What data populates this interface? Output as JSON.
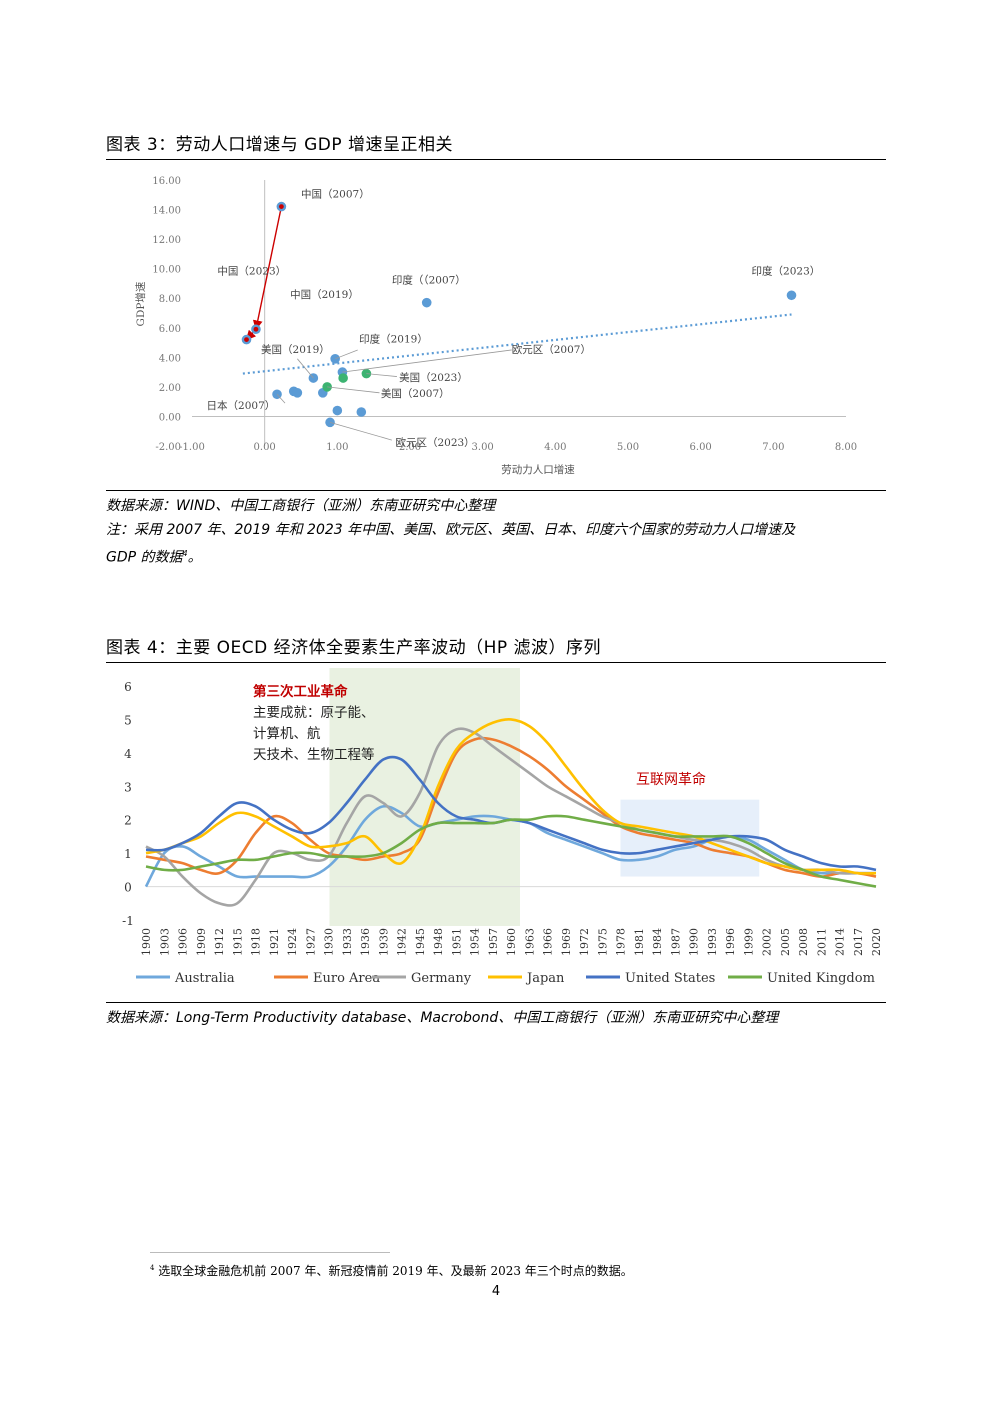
{
  "fig3": {
    "title": "图表 3：劳动人口增速与 GDP 增速呈正相关",
    "source": "数据来源：WIND、中国工商银行（亚洲）东南亚研究中心整理",
    "note_line1": "注：采用 2007 年、2019 年和 2023 年中国、美国、欧元区、英国、日本、印度六个国家的劳动力人口增速及",
    "note_line2": "GDP 的数据",
    "note_sup": "4",
    "note_end": "。"
  },
  "fig4": {
    "title": "图表 4：主要 OECD 经济体全要素生产率波动（HP 滤波）序列",
    "source": "数据来源：Long-Term Productivity database、Macrobond、中国工商银行（亚洲）东南亚研究中心整理"
  },
  "footnote": {
    "mark": "4",
    "text": "选取全球金融危机前 2007 年、新冠疫情前 2019 年、及最新 2023 年三个时点的数据。"
  },
  "page_number": "4",
  "colors": {
    "scatter_blue": "#5b9bd5",
    "scatter_green": "#3cb371",
    "arrow_red": "#cc0000",
    "trend": "#5b9bd5",
    "band_green": "#e9f1e1",
    "band_blue": "#e6effa"
  },
  "chart_data": [
    {
      "type": "scatter",
      "xlabel": "劳动力人口增速",
      "ylabel": "GDP增速",
      "xlim": [
        -1.0,
        8.0
      ],
      "ylim": [
        -2.0,
        16.0
      ],
      "xticks": [
        "-1.00",
        "0.00",
        "1.00",
        "2.00",
        "3.00",
        "4.00",
        "5.00",
        "6.00",
        "7.00",
        "8.00"
      ],
      "yticks": [
        "-2.00",
        "0.00",
        "2.00",
        "4.00",
        "6.00",
        "8.00",
        "10.00",
        "12.00",
        "14.00",
        "16.00"
      ],
      "trendline": {
        "from": [
          -0.3,
          2.9
        ],
        "to": [
          7.25,
          6.9
        ]
      },
      "points": [
        {
          "x": 0.23,
          "y": 14.2,
          "color": "blue",
          "china": true
        },
        {
          "x": -0.12,
          "y": 5.9,
          "color": "blue",
          "china": true
        },
        {
          "x": -0.25,
          "y": 5.2,
          "color": "blue",
          "china": true
        },
        {
          "x": 2.23,
          "y": 7.7,
          "color": "blue"
        },
        {
          "x": 7.25,
          "y": 8.2,
          "color": "blue"
        },
        {
          "x": 0.97,
          "y": 3.9,
          "color": "blue"
        },
        {
          "x": 0.67,
          "y": 2.6,
          "color": "blue"
        },
        {
          "x": 1.07,
          "y": 3.0,
          "color": "blue"
        },
        {
          "x": 0.8,
          "y": 1.6,
          "color": "blue"
        },
        {
          "x": 0.17,
          "y": 1.5,
          "color": "blue"
        },
        {
          "x": 0.4,
          "y": 1.7,
          "color": "blue"
        },
        {
          "x": 0.45,
          "y": 1.6,
          "color": "blue"
        },
        {
          "x": 0.9,
          "y": -0.4,
          "color": "blue"
        },
        {
          "x": 1.0,
          "y": 0.4,
          "color": "blue"
        },
        {
          "x": 1.33,
          "y": 0.3,
          "color": "blue"
        },
        {
          "x": 1.4,
          "y": 2.9,
          "color": "green"
        },
        {
          "x": 1.08,
          "y": 2.6,
          "color": "green"
        },
        {
          "x": 0.86,
          "y": 2.0,
          "color": "green"
        }
      ],
      "arrows": [
        {
          "from": [
            0.23,
            14.2
          ],
          "to": [
            -0.12,
            5.9
          ]
        },
        {
          "from": [
            -0.12,
            5.9
          ],
          "to": [
            -0.25,
            5.2
          ]
        }
      ],
      "annotations": [
        {
          "text": "中国（2007）",
          "x": 0.5,
          "y": 14.8
        },
        {
          "text": "中国（2023）",
          "x": -0.65,
          "y": 9.6
        },
        {
          "text": "中国（2019）",
          "x": 0.35,
          "y": 8.0
        },
        {
          "text": "印度（（2007）",
          "x": 1.75,
          "y": 9.0
        },
        {
          "text": "印度（2023）",
          "x": 6.7,
          "y": 9.6
        },
        {
          "text": "印度（2019）",
          "x": 1.3,
          "y": 5.0
        },
        {
          "text": "美国（2019）",
          "x": -0.05,
          "y": 4.3
        },
        {
          "text": "欧元区（2007）",
          "x": 3.4,
          "y": 4.3
        },
        {
          "text": "美国（2023）",
          "x": 1.85,
          "y": 2.4
        },
        {
          "text": "美国（2007）",
          "x": 1.6,
          "y": 1.3
        },
        {
          "text": "日本（2007）",
          "x": -0.8,
          "y": 0.5
        },
        {
          "text": "欧元区（2023）",
          "x": 1.8,
          "y": -2.0
        }
      ]
    },
    {
      "type": "line",
      "ylim": [
        -1,
        6
      ],
      "yticks": [
        "6",
        "5",
        "4",
        "3",
        "2",
        "1",
        "0",
        "-1"
      ],
      "x": [
        "1900",
        "1903",
        "1906",
        "1909",
        "1912",
        "1915",
        "1918",
        "1921",
        "1924",
        "1927",
        "1930",
        "1933",
        "1936",
        "1939",
        "1942",
        "1945",
        "1948",
        "1951",
        "1954",
        "1957",
        "1960",
        "1963",
        "1966",
        "1969",
        "1972",
        "1975",
        "1978",
        "1981",
        "1984",
        "1987",
        "1990",
        "1993",
        "1996",
        "1999",
        "2002",
        "2005",
        "2008",
        "2011",
        "2014",
        "2017",
        "2020"
      ],
      "series": [
        {
          "name": "Australia",
          "color": "#6fa8dc",
          "values": [
            0.0,
            1.0,
            1.2,
            0.9,
            0.6,
            0.3,
            0.3,
            0.3,
            0.3,
            0.3,
            0.6,
            1.2,
            2.0,
            2.4,
            2.2,
            1.8,
            1.9,
            2.0,
            2.1,
            2.1,
            2.0,
            1.9,
            1.6,
            1.4,
            1.2,
            1.0,
            0.8,
            0.8,
            0.9,
            1.1,
            1.2,
            1.4,
            1.5,
            1.4,
            1.1,
            0.8,
            0.5,
            0.4,
            0.4,
            0.4,
            0.4
          ]
        },
        {
          "name": "Euro Area",
          "color": "#ed7d31",
          "values": [
            0.9,
            0.8,
            0.7,
            0.5,
            0.4,
            0.8,
            1.6,
            2.1,
            1.9,
            1.4,
            1.0,
            0.9,
            0.8,
            0.9,
            1.0,
            1.4,
            2.8,
            4.0,
            4.4,
            4.4,
            4.2,
            3.9,
            3.5,
            3.0,
            2.6,
            2.2,
            1.8,
            1.6,
            1.5,
            1.4,
            1.3,
            1.1,
            1.0,
            0.9,
            0.7,
            0.5,
            0.4,
            0.3,
            0.4,
            0.4,
            0.3
          ]
        },
        {
          "name": "Germany",
          "color": "#a5a5a5",
          "values": [
            1.2,
            0.9,
            0.3,
            -0.2,
            -0.5,
            -0.5,
            0.2,
            1.0,
            1.0,
            0.8,
            0.9,
            1.9,
            2.7,
            2.5,
            2.1,
            2.8,
            4.2,
            4.7,
            4.6,
            4.2,
            3.8,
            3.4,
            3.0,
            2.7,
            2.4,
            2.1,
            1.9,
            1.7,
            1.6,
            1.5,
            1.4,
            1.4,
            1.3,
            1.1,
            0.8,
            0.6,
            0.5,
            0.5,
            0.4,
            0.4,
            0.4
          ]
        },
        {
          "name": "Japan",
          "color": "#ffc000",
          "values": [
            1.0,
            1.1,
            1.3,
            1.5,
            1.9,
            2.2,
            2.1,
            1.8,
            1.5,
            1.2,
            1.2,
            1.3,
            1.5,
            1.0,
            0.7,
            1.5,
            3.0,
            4.1,
            4.6,
            4.9,
            5.0,
            4.8,
            4.3,
            3.6,
            2.9,
            2.3,
            1.9,
            1.8,
            1.7,
            1.6,
            1.5,
            1.3,
            1.1,
            0.9,
            0.7,
            0.6,
            0.5,
            0.5,
            0.5,
            0.4,
            0.4
          ]
        },
        {
          "name": "United States",
          "color": "#4472c4",
          "values": [
            1.1,
            1.1,
            1.3,
            1.6,
            2.1,
            2.5,
            2.4,
            2.0,
            1.7,
            1.6,
            1.9,
            2.5,
            3.2,
            3.8,
            3.8,
            3.2,
            2.5,
            2.1,
            2.0,
            1.9,
            2.0,
            1.9,
            1.7,
            1.5,
            1.3,
            1.1,
            1.0,
            1.0,
            1.1,
            1.2,
            1.3,
            1.4,
            1.5,
            1.5,
            1.4,
            1.1,
            0.9,
            0.7,
            0.6,
            0.6,
            0.5
          ]
        },
        {
          "name": "United Kingdom",
          "color": "#70ad47",
          "values": [
            0.6,
            0.5,
            0.5,
            0.6,
            0.7,
            0.8,
            0.8,
            0.9,
            1.0,
            1.0,
            0.9,
            0.9,
            0.9,
            1.0,
            1.3,
            1.7,
            1.9,
            1.9,
            1.9,
            1.9,
            2.0,
            2.0,
            2.1,
            2.1,
            2.0,
            1.9,
            1.8,
            1.7,
            1.6,
            1.5,
            1.5,
            1.5,
            1.5,
            1.3,
            1.0,
            0.7,
            0.5,
            0.3,
            0.2,
            0.1,
            0.0
          ]
        }
      ],
      "legend_position": "bottom",
      "bands": [
        {
          "from": "1930",
          "to": "1960",
          "color": "green",
          "label": "第三次工业革命",
          "text_lines": [
            "主要成就：原子能、",
            "计算机、航",
            "天技术、生物工程等"
          ]
        },
        {
          "from": "1978",
          "to": "1999",
          "color": "blue",
          "label": "互联网革命"
        }
      ]
    }
  ]
}
